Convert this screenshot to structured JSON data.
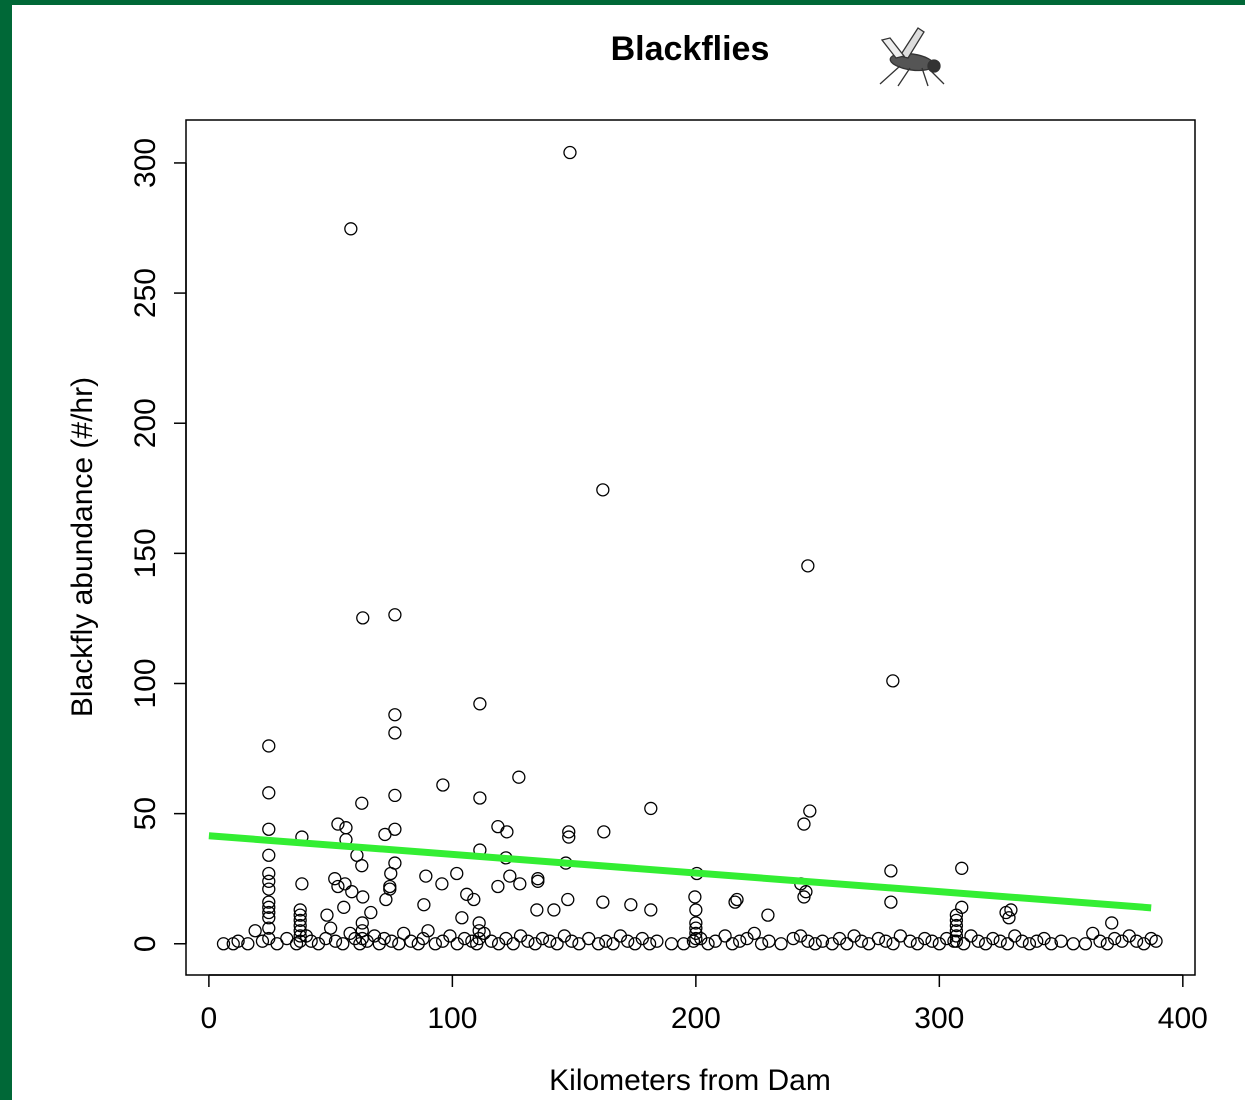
{
  "chart_data": {
    "type": "scatter",
    "title": "Blackflies",
    "x_label": "Kilometers from Dam",
    "y_label": "Blackfly abundance (#/hr)",
    "xlim": [
      -9.4,
      405
    ],
    "ylim": [
      -12,
      316.5
    ],
    "xticks": [
      0,
      100,
      200,
      300,
      400
    ],
    "yticks": [
      0,
      50,
      100,
      150,
      200,
      250,
      300
    ],
    "series": [
      {
        "type": "scatter",
        "color": "#000000",
        "x": [
          148.3,
          58.3,
          161.8,
          246,
          63.2,
          76.4,
          280.9,
          111.3,
          76.4,
          76.4,
          24.6,
          127.3,
          96.1,
          24.6,
          76.4,
          111.3,
          62.8,
          181.5,
          246.8,
          244.4,
          53,
          56.3,
          24.6,
          76.4,
          118.7,
          122.4,
          147.8,
          162.2,
          72.3,
          38.2,
          147.8,
          56.3,
          111.3,
          24.6,
          60.8,
          122,
          146.6,
          76.4,
          62.8,
          309.2,
          280.1,
          200.4,
          24.6,
          74.7,
          101.8,
          123.6,
          89.1,
          135.1,
          135.1,
          51.7,
          24.6,
          38.2,
          55.9,
          95.7,
          127.7,
          243.1,
          74.3,
          74.3,
          53,
          118.7,
          24.6,
          58.7,
          245.2,
          105.9,
          244.4,
          199.6,
          63.2,
          72.7,
          108.8,
          216.9,
          216.1,
          147.4,
          280.1,
          161.8,
          173.3,
          88.3,
          55.4,
          309.2,
          141.7,
          134.7,
          181.5,
          329.4,
          327.4,
          200,
          229.6,
          328.6,
          66.5,
          48.5,
          103.9,
          370.8,
          24.6,
          24.6,
          24.6,
          24.6,
          24.6,
          24.6,
          37.5,
          37.5,
          37.5,
          37.5,
          37.5,
          37.5,
          37.5,
          307,
          307,
          307,
          307,
          307,
          307,
          200,
          200,
          200,
          200,
          111,
          111,
          111,
          63,
          63,
          63,
          6,
          10,
          12,
          16,
          19,
          22,
          28,
          32,
          36,
          40,
          42,
          45,
          48,
          50,
          52,
          55,
          58,
          60,
          62,
          65,
          68,
          70,
          72,
          75,
          78,
          80,
          83,
          86,
          88,
          90,
          93,
          96,
          99,
          102,
          105,
          108,
          110,
          113,
          116,
          119,
          122,
          125,
          128,
          131,
          134,
          137,
          140,
          143,
          146,
          149,
          152,
          156,
          160,
          163,
          166,
          169,
          172,
          175,
          178,
          181,
          184,
          190,
          195,
          199,
          202,
          205,
          208,
          212,
          215,
          218,
          221,
          224,
          227,
          230,
          235,
          240,
          243,
          246,
          249,
          252,
          256,
          259,
          262,
          265,
          268,
          271,
          275,
          278,
          281,
          284,
          288,
          291,
          294,
          297,
          300,
          303,
          306,
          310,
          313,
          316,
          319,
          322,
          325,
          328,
          331,
          334,
          337,
          340,
          343,
          346,
          350,
          355,
          360,
          363,
          366,
          369,
          372,
          375,
          378,
          381,
          384,
          387,
          389
        ],
        "values": [
          304,
          274.7,
          174.4,
          145.2,
          125.2,
          126.4,
          101,
          92.2,
          88,
          81,
          76,
          64,
          61,
          58,
          57,
          56,
          54,
          52,
          51,
          46,
          46,
          44.6,
          44,
          44,
          45,
          43,
          43,
          43,
          42,
          41,
          41,
          40,
          36,
          34,
          34,
          33,
          31,
          31,
          30,
          29,
          28,
          27,
          27,
          27,
          27,
          26,
          26,
          25,
          24,
          25,
          24,
          23,
          23,
          23,
          23,
          23,
          22,
          21,
          22,
          22,
          21,
          20,
          20,
          19,
          18,
          18,
          18,
          17,
          17,
          17,
          16,
          17,
          16,
          16,
          15,
          15,
          14,
          14,
          13,
          13,
          13,
          13,
          12,
          13,
          11,
          10,
          12,
          11,
          10,
          8,
          2,
          6,
          10,
          12,
          14,
          16,
          1,
          3,
          5,
          7,
          9,
          11,
          13,
          1,
          3,
          5,
          7,
          9,
          11,
          2,
          4,
          6,
          8,
          2,
          5,
          8,
          2,
          5,
          8,
          0,
          0,
          1,
          0,
          5,
          1,
          0,
          2,
          0,
          3,
          1,
          0,
          2,
          6,
          1,
          0,
          4,
          2,
          0,
          1,
          3,
          0,
          2,
          1,
          0,
          4,
          1,
          0,
          2,
          5,
          0,
          1,
          3,
          0,
          2,
          1,
          0,
          4,
          1,
          0,
          2,
          0,
          3,
          1,
          0,
          2,
          1,
          0,
          3,
          1,
          0,
          2,
          0,
          1,
          0,
          3,
          1,
          0,
          2,
          0,
          1,
          0,
          0,
          1,
          2,
          0,
          1,
          3,
          0,
          1,
          2,
          4,
          0,
          1,
          0,
          2,
          3,
          1,
          0,
          1,
          0,
          2,
          0,
          3,
          1,
          0,
          2,
          1,
          0,
          3,
          1,
          0,
          2,
          1,
          0,
          2,
          1,
          0,
          3,
          1,
          0,
          2,
          1,
          0,
          3,
          1,
          0,
          1,
          2,
          0,
          1,
          0,
          0,
          4,
          1,
          0,
          2,
          1,
          3,
          1,
          0,
          2,
          1
        ]
      },
      {
        "type": "line",
        "color": "#33ee33",
        "x": [
          0,
          387
        ],
        "values": [
          41.5,
          13.8
        ]
      }
    ]
  }
}
